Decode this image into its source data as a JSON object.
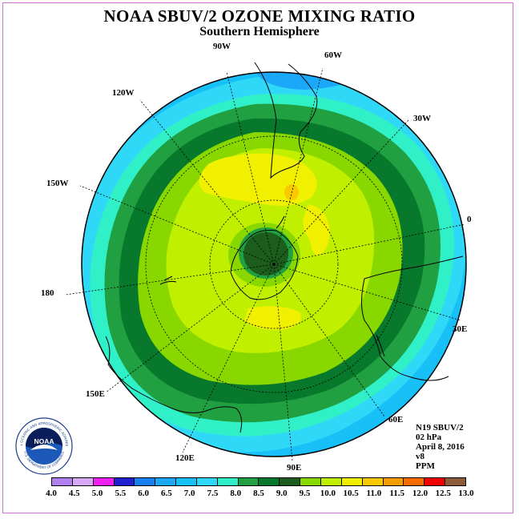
{
  "header": {
    "title": "NOAA SBUV/2 OZONE MIXING RATIO",
    "subtitle": "Southern Hemisphere"
  },
  "longitude_labels": [
    {
      "text": "90W",
      "name": "lon-90w"
    },
    {
      "text": "60W",
      "name": "lon-60w"
    },
    {
      "text": "120W",
      "name": "lon-120w"
    },
    {
      "text": "30W",
      "name": "lon-30w"
    },
    {
      "text": "150W",
      "name": "lon-150w"
    },
    {
      "text": "0",
      "name": "lon-0"
    },
    {
      "text": "180",
      "name": "lon-180"
    },
    {
      "text": "30E",
      "name": "lon-30e"
    },
    {
      "text": "150E",
      "name": "lon-150e"
    },
    {
      "text": "60E",
      "name": "lon-60e"
    },
    {
      "text": "120E",
      "name": "lon-120e"
    },
    {
      "text": "90E",
      "name": "lon-90e"
    }
  ],
  "info": {
    "satellite": "N19 SBUV/2",
    "level": "02 hPa",
    "date": "April 8, 2016",
    "version": "v8",
    "units": "PPM"
  },
  "logo": {
    "text": "NOAA",
    "ring_text": "NATIONAL OCEANIC AND ATMOSPHERIC ADMINISTRATION",
    "ring_text_bottom": "U.S. DEPARTMENT OF COMMERCE"
  },
  "colorbar": {
    "ticks": [
      "4.0",
      "4.5",
      "5.0",
      "5.5",
      "6.0",
      "6.5",
      "7.0",
      "7.5",
      "8.0",
      "8.5",
      "9.0",
      "9.5",
      "10.0",
      "10.5",
      "11.0",
      "11.5",
      "12.0",
      "12.5",
      "13.0"
    ],
    "colors": [
      "#b080f0",
      "#d8a8f8",
      "#f020f0",
      "#2020d0",
      "#1880f0",
      "#1ca8f8",
      "#18c0f8",
      "#30d8f8",
      "#30f0c8",
      "#20a040",
      "#08782c",
      "#1c5c1c",
      "#88d800",
      "#c0f000",
      "#f0f000",
      "#f8c800",
      "#f89c00",
      "#f86c00",
      "#f00000",
      "#8c5c38"
    ]
  },
  "map_data": {
    "projection": "south polar stereographic",
    "contour_levels_ppm": [
      7.0,
      7.5,
      8.0,
      8.5,
      9.0,
      9.5,
      10.0,
      10.5,
      11.0
    ],
    "pole_minimum_ppm": 8.5,
    "local_maximum_ppm": 11.0
  }
}
